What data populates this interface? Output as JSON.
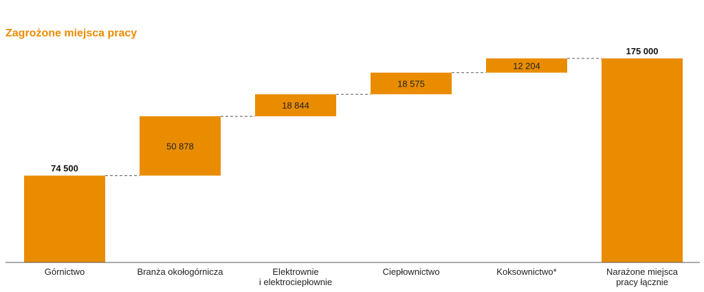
{
  "chart_data": {
    "type": "bar",
    "title": "Zagrożone miejsca pracy",
    "categories": [
      [
        "Górnictwo"
      ],
      [
        "Branża okołogórnicza"
      ],
      [
        "Elektrownie",
        "i elektrociepłownie"
      ],
      [
        "Ciepłownictwo"
      ],
      [
        "Koksownictwo*"
      ],
      [
        "Narażone miejsca",
        "pracy łącznie"
      ]
    ],
    "values": [
      74500,
      50878,
      18844,
      18575,
      12204,
      175000
    ],
    "value_labels": [
      "74 500",
      "50 878",
      "18 844",
      "18 575",
      "12 204",
      "175 000"
    ],
    "bar_roles": [
      "total",
      "delta",
      "delta",
      "delta",
      "delta",
      "total"
    ],
    "variant": "waterfall",
    "xlabel": "",
    "ylabel": "",
    "ylim": [
      0,
      175000
    ],
    "grid": false,
    "colors": {
      "bar": "#EA8C00",
      "title": "#EA8C00",
      "connector": "#555555",
      "axis": "#555555"
    }
  }
}
